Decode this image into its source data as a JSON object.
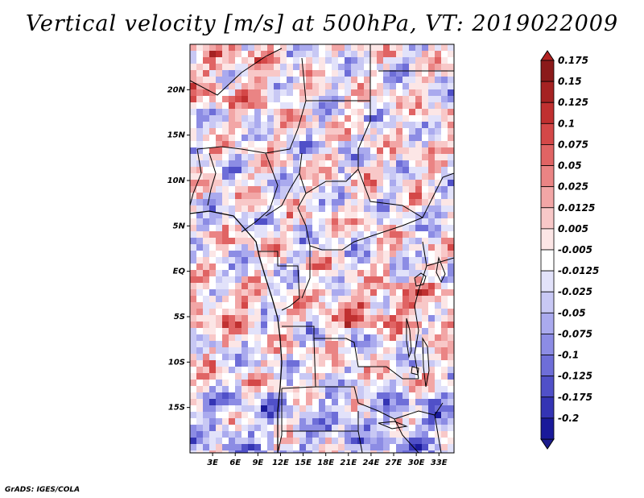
{
  "title": "Vertical velocity [m/s] at 500hPa, VT: 2019022009",
  "footer": "GrADS: IGES/COLA",
  "map": {
    "lon_range": [
      0,
      35
    ],
    "lat_range": [
      -20,
      25
    ],
    "lat_ticks": [
      {
        "label": "20N",
        "value": 20
      },
      {
        "label": "15N",
        "value": 15
      },
      {
        "label": "10N",
        "value": 10
      },
      {
        "label": "5N",
        "value": 5
      },
      {
        "label": "EQ",
        "value": 0
      },
      {
        "label": "5S",
        "value": -5
      },
      {
        "label": "10S",
        "value": -10
      },
      {
        "label": "15S",
        "value": -15
      }
    ],
    "lon_ticks": [
      {
        "label": "3E",
        "value": 3
      },
      {
        "label": "6E",
        "value": 6
      },
      {
        "label": "9E",
        "value": 9
      },
      {
        "label": "12E",
        "value": 12
      },
      {
        "label": "15E",
        "value": 15
      },
      {
        "label": "18E",
        "value": 18
      },
      {
        "label": "21E",
        "value": 21
      },
      {
        "label": "24E",
        "value": 24
      },
      {
        "label": "27E",
        "value": 27
      },
      {
        "label": "30E",
        "value": 30
      },
      {
        "label": "33E",
        "value": 33
      }
    ]
  },
  "colorbar": {
    "levels": [
      {
        "label": "0.175",
        "color": "#8b1a1a"
      },
      {
        "label": "0.15",
        "color": "#a52222"
      },
      {
        "label": "0.125",
        "color": "#c03030"
      },
      {
        "label": "0.1",
        "color": "#d44848"
      },
      {
        "label": "0.075",
        "color": "#e06464"
      },
      {
        "label": "0.05",
        "color": "#ea8484"
      },
      {
        "label": "0.025",
        "color": "#f2a6a6"
      },
      {
        "label": "0.0125",
        "color": "#f8c8c8"
      },
      {
        "label": "0.005",
        "color": "#fce6e6"
      },
      {
        "label": "-0.005",
        "color": "#ffffff"
      },
      {
        "label": "-0.0125",
        "color": "#e2e2fa"
      },
      {
        "label": "-0.025",
        "color": "#c8c8f4"
      },
      {
        "label": "-0.05",
        "color": "#aaaaee"
      },
      {
        "label": "-0.075",
        "color": "#8c8ce4"
      },
      {
        "label": "-0.1",
        "color": "#6e6ed8"
      },
      {
        "label": "-0.125",
        "color": "#5050c8"
      },
      {
        "label": "-0.175",
        "color": "#3434b4"
      },
      {
        "label": "-0.2",
        "color": "#1a1a9a"
      }
    ],
    "top_color": "#b22222",
    "bottom_color": "#1c1c8c"
  }
}
